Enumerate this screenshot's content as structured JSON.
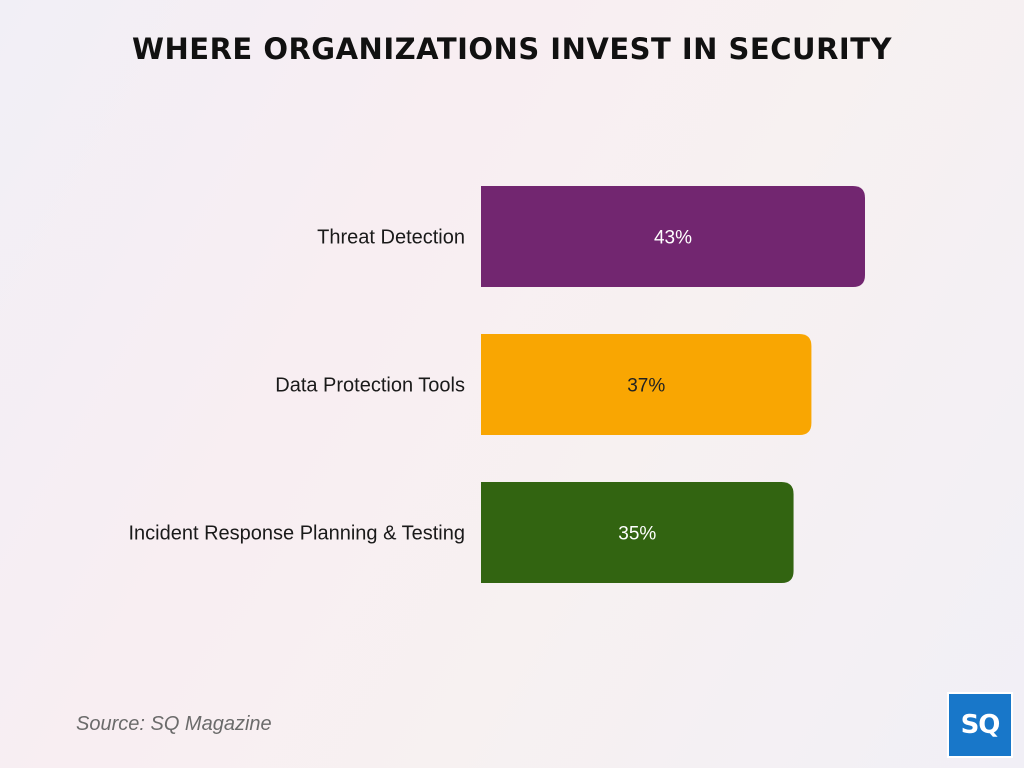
{
  "title": "WHERE ORGANIZATIONS INVEST IN SECURITY",
  "source": "Source: SQ Magazine",
  "logo_text": "SQ",
  "colors": {
    "logo_bg": "#1877c9",
    "text": "#111111"
  },
  "chart_data": {
    "type": "bar",
    "orientation": "horizontal",
    "categories": [
      "Threat Detection",
      "Data Protection Tools",
      "Incident Response Planning & Testing"
    ],
    "values": [
      43,
      37,
      35
    ],
    "value_labels": [
      "43%",
      "37%",
      "35%"
    ],
    "bar_colors": [
      "#722670",
      "#f9a602",
      "#326411"
    ],
    "label_colors": [
      "#ffffff",
      "#222222",
      "#ffffff"
    ],
    "xlim": [
      0,
      43
    ],
    "grid": false,
    "legend": "none"
  }
}
